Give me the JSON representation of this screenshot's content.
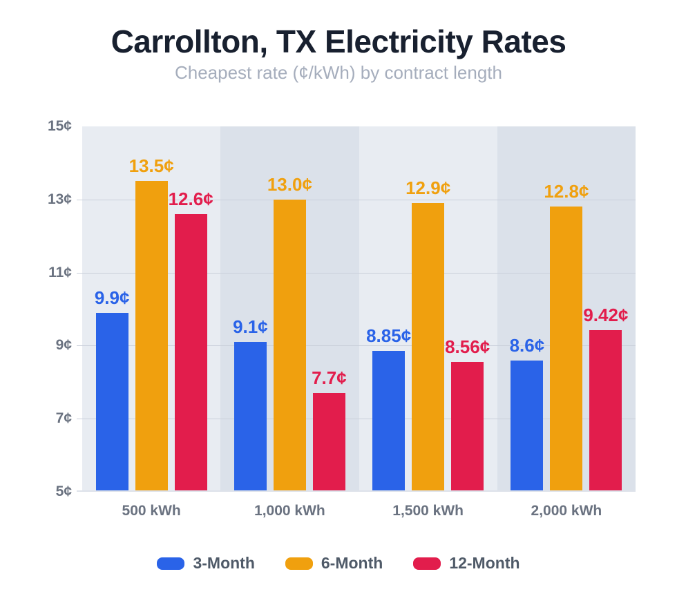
{
  "title": "Carrollton, TX Electricity Rates",
  "subtitle": "Cheapest rate (¢/kWh) by contract length",
  "chart_data": {
    "type": "bar",
    "title": "Carrollton, TX Electricity Rates",
    "subtitle": "Cheapest rate (¢/kWh) by contract length",
    "categories": [
      "500 kWh",
      "1,000 kWh",
      "1,500 kWh",
      "2,000 kWh"
    ],
    "series": [
      {
        "name": "3-Month",
        "color": "#2A63E8",
        "values": [
          9.9,
          9.1,
          8.85,
          8.6
        ],
        "labels": [
          "9.9¢",
          "9.1¢",
          "8.85¢",
          "8.6¢"
        ]
      },
      {
        "name": "6-Month",
        "color": "#F0A00E",
        "values": [
          13.5,
          13.0,
          12.9,
          12.8
        ],
        "labels": [
          "13.5¢",
          "13.0¢",
          "12.9¢",
          "12.8¢"
        ]
      },
      {
        "name": "12-Month",
        "color": "#E21D4C",
        "values": [
          12.6,
          7.7,
          8.56,
          9.42
        ],
        "labels": [
          "12.6¢",
          "7.7¢",
          "8.56¢",
          "9.42¢"
        ]
      }
    ],
    "ylim": [
      5,
      15
    ],
    "yticks": [
      {
        "value": 15,
        "label": "15¢"
      },
      {
        "value": 13,
        "label": "13¢"
      },
      {
        "value": 11,
        "label": "11¢"
      },
      {
        "value": 9,
        "label": "9¢"
      },
      {
        "value": 7,
        "label": "7¢"
      },
      {
        "value": 5,
        "label": "5¢"
      }
    ],
    "grid": true,
    "legend_position": "bottom",
    "band_colors": [
      "#E8ECF2",
      "#DBE1EA"
    ]
  },
  "colors": {
    "title_text": "#18202F",
    "subtitle_text": "#A5ADBC",
    "axis_text": "#6A7280",
    "legend_text": "#4F5A68",
    "gridline": "#C9CFDA",
    "background": "#FFFFFF"
  }
}
